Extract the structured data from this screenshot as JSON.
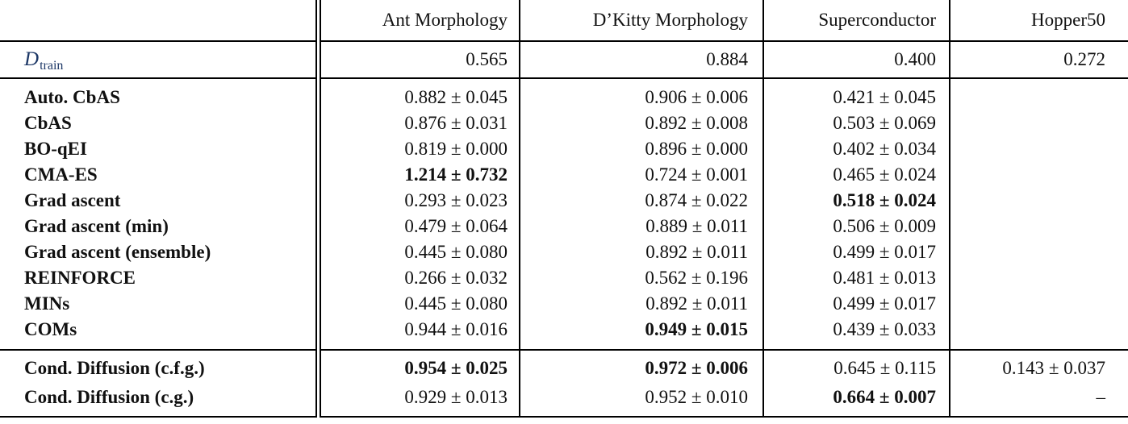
{
  "colors": {
    "accent_navy": "#1c3766",
    "text": "#111111",
    "rule": "#000000"
  },
  "table": {
    "columns": [
      "",
      "Ant Morphology",
      "D’Kitty Morphology",
      "Superconductor",
      "Hopper50"
    ],
    "dtrain": {
      "label_main": "D",
      "label_sub": "train",
      "values": [
        "0.565",
        "0.884",
        "0.400",
        "0.272"
      ]
    },
    "baseline_rows": [
      {
        "label": "Auto. CbAS",
        "cells": [
          {
            "t": "0.882 ± 0.045",
            "b": false
          },
          {
            "t": "0.906 ± 0.006",
            "b": false
          },
          {
            "t": "0.421 ± 0.045",
            "b": false
          },
          {
            "t": "",
            "b": false
          }
        ]
      },
      {
        "label": "CbAS",
        "cells": [
          {
            "t": "0.876 ± 0.031",
            "b": false
          },
          {
            "t": "0.892 ± 0.008",
            "b": false
          },
          {
            "t": "0.503 ± 0.069",
            "b": false
          },
          {
            "t": "",
            "b": false
          }
        ]
      },
      {
        "label": "BO-qEI",
        "cells": [
          {
            "t": "0.819 ± 0.000",
            "b": false
          },
          {
            "t": "0.896 ± 0.000",
            "b": false
          },
          {
            "t": "0.402 ± 0.034",
            "b": false
          },
          {
            "t": "",
            "b": false
          }
        ]
      },
      {
        "label": "CMA-ES",
        "cells": [
          {
            "t": "1.214 ± 0.732",
            "b": true
          },
          {
            "t": "0.724 ± 0.001",
            "b": false
          },
          {
            "t": "0.465 ± 0.024",
            "b": false
          },
          {
            "t": "",
            "b": false
          }
        ]
      },
      {
        "label": "Grad ascent",
        "cells": [
          {
            "t": "0.293 ± 0.023",
            "b": false
          },
          {
            "t": "0.874 ± 0.022",
            "b": false
          },
          {
            "t": "0.518 ± 0.024",
            "b": true
          },
          {
            "t": "",
            "b": false
          }
        ]
      },
      {
        "label": "Grad ascent (min)",
        "cells": [
          {
            "t": "0.479 ± 0.064",
            "b": false
          },
          {
            "t": "0.889 ± 0.011",
            "b": false
          },
          {
            "t": "0.506 ± 0.009",
            "b": false
          },
          {
            "t": "",
            "b": false
          }
        ]
      },
      {
        "label": "Grad ascent (ensemble)",
        "cells": [
          {
            "t": "0.445 ± 0.080",
            "b": false
          },
          {
            "t": "0.892 ± 0.011",
            "b": false
          },
          {
            "t": "0.499 ± 0.017",
            "b": false
          },
          {
            "t": "",
            "b": false
          }
        ]
      },
      {
        "label": "REINFORCE",
        "cells": [
          {
            "t": "0.266 ± 0.032",
            "b": false
          },
          {
            "t": "0.562 ± 0.196",
            "b": false
          },
          {
            "t": "0.481 ± 0.013",
            "b": false
          },
          {
            "t": "",
            "b": false
          }
        ]
      },
      {
        "label": "MINs",
        "cells": [
          {
            "t": "0.445 ± 0.080",
            "b": false
          },
          {
            "t": "0.892 ± 0.011",
            "b": false
          },
          {
            "t": "0.499 ± 0.017",
            "b": false
          },
          {
            "t": "",
            "b": false
          }
        ]
      },
      {
        "label": "COMs",
        "cells": [
          {
            "t": "0.944 ± 0.016",
            "b": false
          },
          {
            "t": "0.949 ± 0.015",
            "b": true
          },
          {
            "t": "0.439 ± 0.033",
            "b": false
          },
          {
            "t": "",
            "b": false
          }
        ]
      }
    ],
    "diffusion_rows": [
      {
        "label": "Cond. Diffusion (c.f.g.)",
        "cells": [
          {
            "t": "0.954 ± 0.025",
            "b": true
          },
          {
            "t": "0.972 ± 0.006",
            "b": true
          },
          {
            "t": "0.645 ± 0.115",
            "b": false
          },
          {
            "t": "0.143 ± 0.037",
            "b": false
          }
        ]
      },
      {
        "label": "Cond. Diffusion (c.g.)",
        "cells": [
          {
            "t": "0.929 ± 0.013",
            "b": false
          },
          {
            "t": "0.952 ± 0.010",
            "b": false
          },
          {
            "t": "0.664 ± 0.007",
            "b": true
          },
          {
            "t": "–",
            "b": false
          }
        ]
      }
    ]
  }
}
